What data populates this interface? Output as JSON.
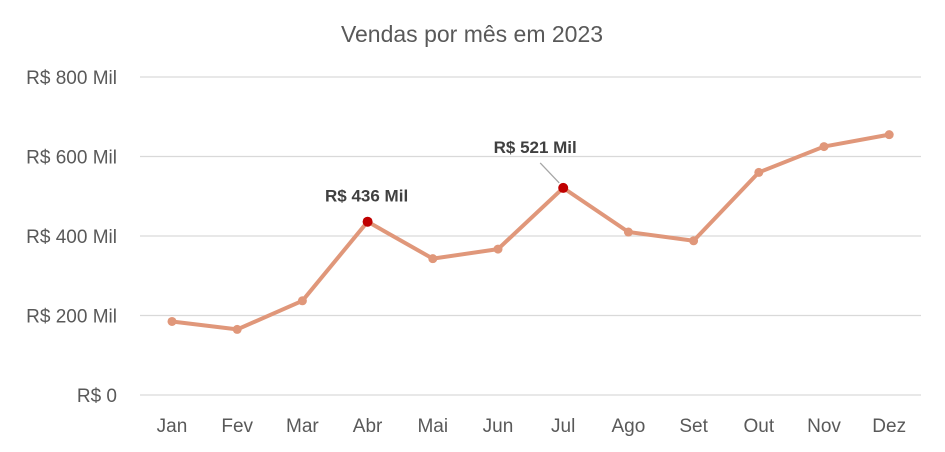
{
  "chart_data": {
    "type": "line",
    "title": "Vendas por mês em 2023",
    "xlabel": "",
    "ylabel": "",
    "categories": [
      "Jan",
      "Fev",
      "Mar",
      "Abr",
      "Mai",
      "Jun",
      "Jul",
      "Ago",
      "Set",
      "Out",
      "Nov",
      "Dez"
    ],
    "series": [
      {
        "values": [
          185,
          165,
          237,
          436,
          343,
          367,
          521,
          410,
          388,
          560,
          625,
          655
        ],
        "color": "#e0977a"
      }
    ],
    "ylim": [
      0,
      800
    ],
    "yticks": [
      0,
      200,
      400,
      600,
      800
    ],
    "ytick_labels": [
      "R$ 0",
      "R$ 200 Mil",
      "R$ 400 Mil",
      "R$ 600 Mil",
      "R$ 800 Mil"
    ],
    "grid": true,
    "legend": "none",
    "highlight_color": "#c00000",
    "annotations": [
      {
        "category": "Abr",
        "value": 436,
        "text": "R$ 436 Mil"
      },
      {
        "category": "Jul",
        "value": 521,
        "text": "R$ 521 Mil"
      }
    ]
  }
}
